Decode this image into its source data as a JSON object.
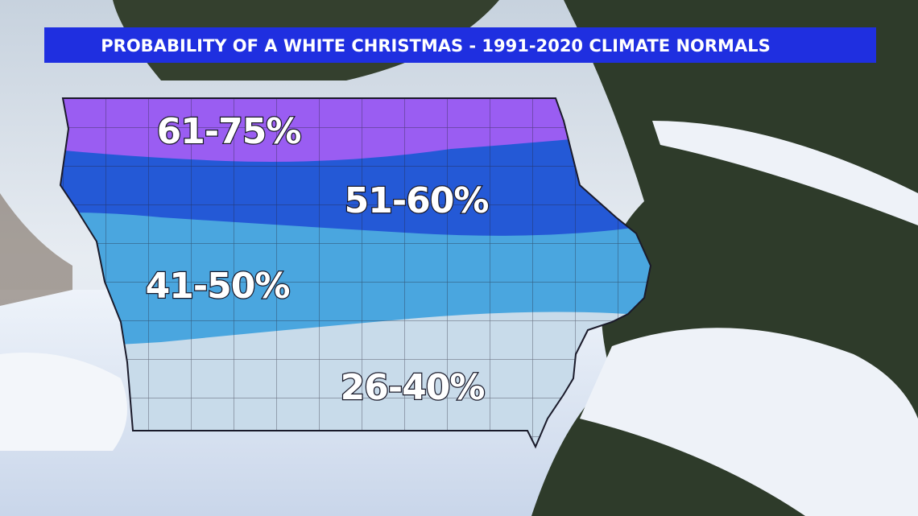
{
  "header": {
    "title": "PROBABILITY OF A WHITE CHRISTMAS - 1991-2020 CLIMATE NORMALS"
  },
  "regions": [
    {
      "label": "61-75%"
    },
    {
      "label": "51-60%"
    },
    {
      "label": "41-50%"
    },
    {
      "label": "26-40%"
    }
  ]
}
